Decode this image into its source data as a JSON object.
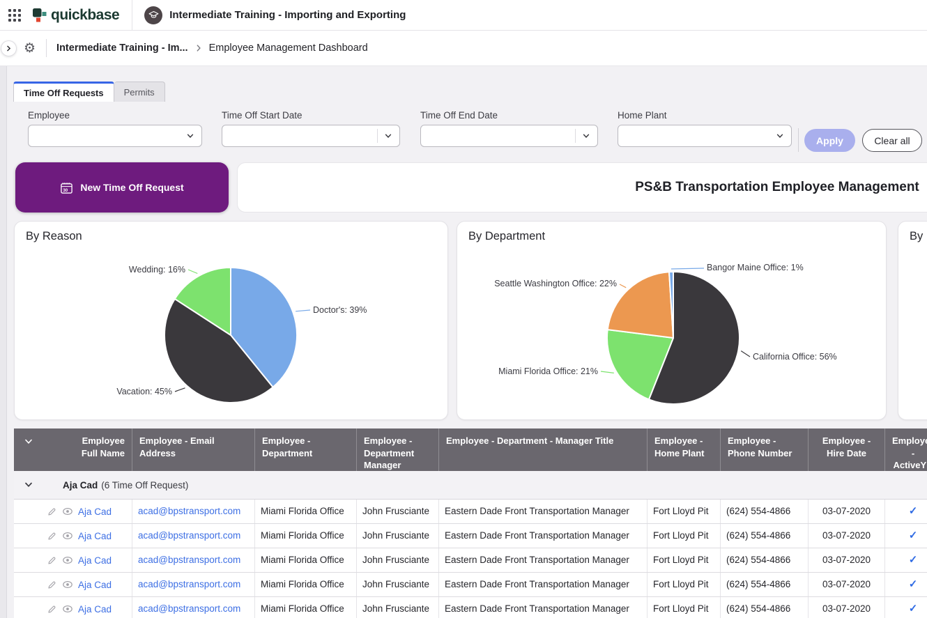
{
  "topbar": {
    "brand": "quickbase",
    "app_name": "Intermediate Training - Importing and Exporting"
  },
  "navbar": {
    "breadcrumb_app": "Intermediate Training - Im...",
    "breadcrumb_page": "Employee Management Dashboard"
  },
  "tabs": {
    "active": "Time Off Requests",
    "inactive": "Permits"
  },
  "filters": {
    "employee_label": "Employee",
    "start_date_label": "Time Off Start Date",
    "end_date_label": "Time Off End Date",
    "home_plant_label": "Home Plant",
    "apply_label": "Apply",
    "clear_all_label": "Clear all"
  },
  "actions": {
    "new_time_off_request": "New Time Off Request"
  },
  "dashboard_title": "PS&B Transportation Employee Management",
  "chart_data": [
    {
      "type": "pie",
      "title": "By Reason",
      "categories": [
        "Doctor's",
        "Vacation",
        "Wedding"
      ],
      "values": [
        39,
        45,
        16
      ],
      "colors": [
        "#78A9E8",
        "#3A383C",
        "#7DE26E"
      ],
      "label_style": "callout: name: value%"
    },
    {
      "type": "pie",
      "title": "By Department",
      "categories": [
        "California Office",
        "Miami Florida Office",
        "Seattle Washington Office",
        "Bangor Maine Office"
      ],
      "values": [
        56,
        21,
        22,
        1
      ],
      "colors": [
        "#3A383C",
        "#7DE26E",
        "#EC9850",
        "#78A9E8"
      ],
      "label_style": "callout: name: value%"
    },
    {
      "type": "pie",
      "title": "By Home Plant",
      "clipped": true
    }
  ],
  "table": {
    "headers": [
      "",
      "Employee Full Name",
      "Employee - Email Address",
      "Employee - Department",
      "Employee - Department Manager",
      "Employee - Department - Manager Title",
      "Employee - Home Plant",
      "Employee - Phone Number",
      "Employee - Hire Date",
      "Employee - ActiveYN"
    ],
    "group": {
      "name": "Aja Cad",
      "count": "(6 Time Off Request)"
    },
    "rows": [
      {
        "full_name": "Aja Cad",
        "email": "acad@bpstransport.com",
        "department": "Miami Florida Office",
        "manager": "John Frusciante",
        "manager_title": "Eastern Dade Front Transportation Manager",
        "home_plant": "Fort Lloyd Pit",
        "phone": "(624) 554-4866",
        "hire_date": "03-07-2020",
        "active": "✓"
      },
      {
        "full_name": "Aja Cad",
        "email": "acad@bpstransport.com",
        "department": "Miami Florida Office",
        "manager": "John Frusciante",
        "manager_title": "Eastern Dade Front Transportation Manager",
        "home_plant": "Fort Lloyd Pit",
        "phone": "(624) 554-4866",
        "hire_date": "03-07-2020",
        "active": "✓"
      },
      {
        "full_name": "Aja Cad",
        "email": "acad@bpstransport.com",
        "department": "Miami Florida Office",
        "manager": "John Frusciante",
        "manager_title": "Eastern Dade Front Transportation Manager",
        "home_plant": "Fort Lloyd Pit",
        "phone": "(624) 554-4866",
        "hire_date": "03-07-2020",
        "active": "✓"
      },
      {
        "full_name": "Aja Cad",
        "email": "acad@bpstransport.com",
        "department": "Miami Florida Office",
        "manager": "John Frusciante",
        "manager_title": "Eastern Dade Front Transportation Manager",
        "home_plant": "Fort Lloyd Pit",
        "phone": "(624) 554-4866",
        "hire_date": "03-07-2020",
        "active": "✓"
      },
      {
        "full_name": "Aja Cad",
        "email": "acad@bpstransport.com",
        "department": "Miami Florida Office",
        "manager": "John Frusciante",
        "manager_title": "Eastern Dade Front Transportation Manager",
        "home_plant": "Fort Lloyd Pit",
        "phone": "(624) 554-4866",
        "hire_date": "03-07-2020",
        "active": "✓"
      }
    ]
  }
}
